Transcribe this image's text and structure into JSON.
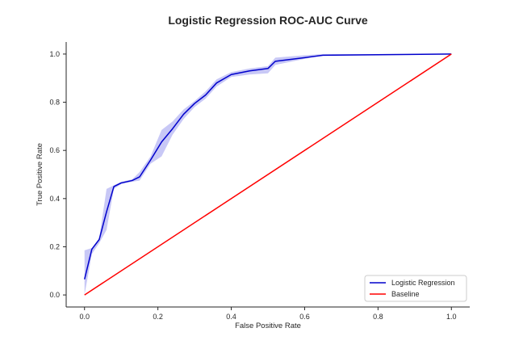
{
  "chart_data": {
    "type": "line",
    "title": "Logistic Regression ROC-AUC Curve",
    "xlabel": "False Positive Rate",
    "ylabel": "True Positive Rate",
    "xlim": [
      -0.05,
      1.05
    ],
    "ylim": [
      -0.05,
      1.05
    ],
    "xticks": [
      0.0,
      0.2,
      0.4,
      0.6,
      0.8,
      1.0
    ],
    "yticks": [
      0.0,
      0.2,
      0.4,
      0.6,
      0.8,
      1.0
    ],
    "tick_labels": [
      "0.0",
      "0.2",
      "0.4",
      "0.6",
      "0.8",
      "1.0"
    ],
    "legend_position": "lower-right",
    "grid": false,
    "series": [
      {
        "name": "Logistic Regression",
        "color": "#0000cc",
        "band_color": "#9a9aee",
        "x": [
          0.0,
          0.02,
          0.04,
          0.06,
          0.08,
          0.1,
          0.13,
          0.15,
          0.18,
          0.21,
          0.24,
          0.27,
          0.3,
          0.33,
          0.36,
          0.4,
          0.45,
          0.5,
          0.52,
          0.6,
          0.65,
          1.0
        ],
        "y": [
          0.065,
          0.19,
          0.23,
          0.345,
          0.45,
          0.465,
          0.475,
          0.49,
          0.56,
          0.635,
          0.69,
          0.75,
          0.795,
          0.83,
          0.88,
          0.915,
          0.93,
          0.94,
          0.97,
          0.985,
          0.995,
          1.0
        ],
        "y_lower": [
          0.0,
          0.17,
          0.215,
          0.27,
          0.44,
          0.46,
          0.47,
          0.475,
          0.545,
          0.575,
          0.665,
          0.73,
          0.78,
          0.815,
          0.865,
          0.905,
          0.915,
          0.92,
          0.955,
          0.98,
          0.995,
          1.0
        ],
        "y_upper": [
          0.185,
          0.195,
          0.235,
          0.44,
          0.455,
          0.47,
          0.48,
          0.51,
          0.575,
          0.685,
          0.72,
          0.77,
          0.805,
          0.845,
          0.895,
          0.925,
          0.94,
          0.95,
          0.985,
          0.995,
          1.0,
          1.0
        ]
      },
      {
        "name": "Baseline",
        "color": "#ff0000",
        "x": [
          0.0,
          1.0
        ],
        "y": [
          0.0,
          1.0
        ]
      }
    ]
  }
}
